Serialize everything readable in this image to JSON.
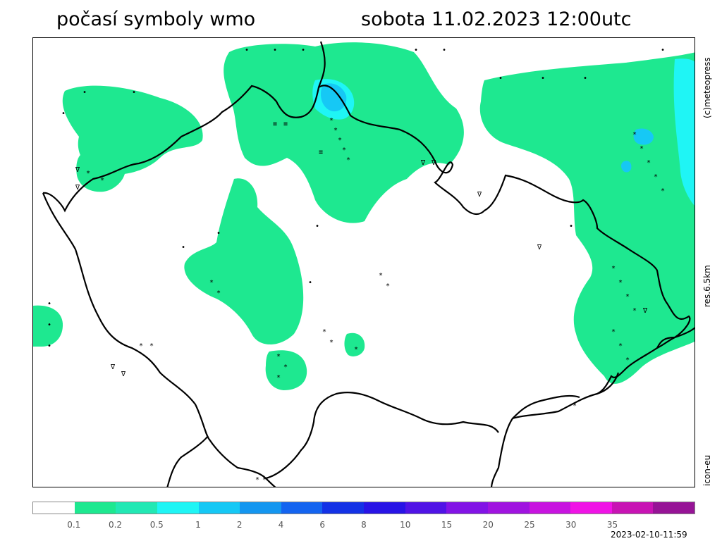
{
  "header": {
    "title_left": "počasí symboly wmo",
    "title_right": "sobota 11.02.2023 12:00utc"
  },
  "side_labels": {
    "copyright": "(c)meteopress",
    "resolution": "res.6.5km",
    "model": "icon-eu"
  },
  "legend": {
    "colors": [
      "#ffffff",
      "#1ee890",
      "#22e8b4",
      "#1ff5f5",
      "#16c8f5",
      "#1496f0",
      "#1464f0",
      "#1432e6",
      "#2814e6",
      "#5014e6",
      "#8214e6",
      "#a014e0",
      "#c814e0",
      "#f014e6",
      "#c814b4",
      "#961496"
    ],
    "labels": [
      "0.1",
      "0.2",
      "0.5",
      "1",
      "2",
      "4",
      "6",
      "8",
      "10",
      "15",
      "20",
      "25",
      "30",
      "35"
    ]
  },
  "timestamp": "2023-02-10-11:59",
  "symbols": {
    "snow": "*",
    "drizzle": "•",
    "shower": "∇",
    "fog": "≡"
  }
}
